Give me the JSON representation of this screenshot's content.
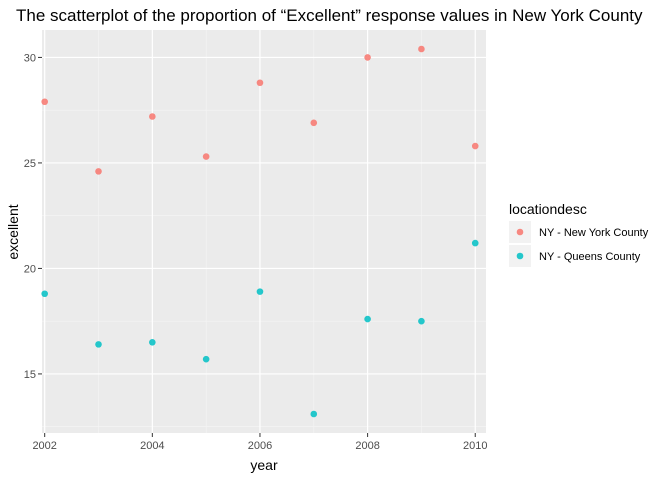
{
  "chart_data": {
    "type": "scatter",
    "title": "The scatterplot of the proportion of “Excellent” response values in New York County",
    "xlabel": "year",
    "ylabel": "excellent",
    "xlim": [
      2001.95,
      2010.2
    ],
    "ylim": [
      12.2,
      31.3
    ],
    "x_ticks": [
      2002,
      2004,
      2006,
      2008,
      2010
    ],
    "y_ticks": [
      15,
      20,
      25,
      30
    ],
    "grid": true,
    "legend": {
      "title": "locationdesc",
      "position": "right"
    },
    "series": [
      {
        "name": "NY - New York County",
        "color": "#F8766D",
        "points": [
          {
            "x": 2002,
            "y": 27.9
          },
          {
            "x": 2003,
            "y": 24.6
          },
          {
            "x": 2004,
            "y": 27.2
          },
          {
            "x": 2005,
            "y": 25.3
          },
          {
            "x": 2006,
            "y": 28.8
          },
          {
            "x": 2007,
            "y": 26.9
          },
          {
            "x": 2008,
            "y": 30.0
          },
          {
            "x": 2009,
            "y": 30.4
          },
          {
            "x": 2010,
            "y": 25.8
          }
        ]
      },
      {
        "name": "NY - Queens County",
        "color": "#00BFC4",
        "points": [
          {
            "x": 2002,
            "y": 18.8
          },
          {
            "x": 2003,
            "y": 16.4
          },
          {
            "x": 2004,
            "y": 16.5
          },
          {
            "x": 2005,
            "y": 15.7
          },
          {
            "x": 2006,
            "y": 18.9
          },
          {
            "x": 2007,
            "y": 13.1
          },
          {
            "x": 2008,
            "y": 17.6
          },
          {
            "x": 2009,
            "y": 17.5
          },
          {
            "x": 2010,
            "y": 21.2
          }
        ]
      }
    ]
  }
}
